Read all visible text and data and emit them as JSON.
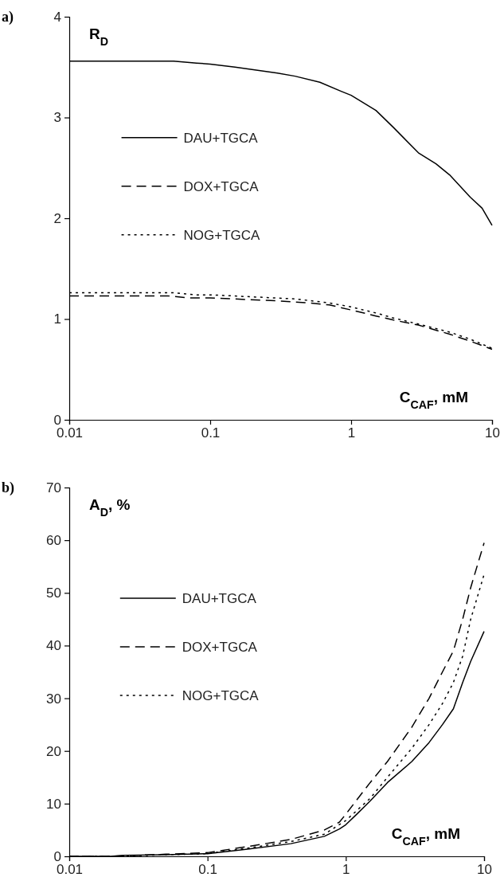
{
  "chart_data": [
    {
      "type": "line",
      "title": "a)",
      "xlabel": "C$_{CAF}$, mM",
      "ylabel": "R$_{D}$",
      "log": "x",
      "xlim": [
        0.01,
        10
      ],
      "xticks": [
        0.01,
        0.1,
        1,
        10
      ],
      "ylim": [
        0,
        4
      ],
      "yticks": [
        0,
        1,
        2,
        3,
        4
      ],
      "legend": "left",
      "marker": "none",
      "series": [
        {
          "name": "DAU+TGCA",
          "color": "#000000",
          "line_style": "solid",
          "x": [
            0.01,
            0.055,
            0.08,
            0.1,
            0.15,
            0.3,
            0.4,
            0.6,
            0.85,
            1,
            1.5,
            2,
            3,
            4,
            5,
            7,
            8.5,
            10
          ],
          "values": [
            3.56,
            3.56,
            3.54,
            3.53,
            3.5,
            3.44,
            3.41,
            3.35,
            3.26,
            3.22,
            3.07,
            2.9,
            2.65,
            2.54,
            2.43,
            2.21,
            2.1,
            1.93
          ]
        },
        {
          "name": "DOX+TGCA",
          "color": "#000000",
          "line_style": "dashed",
          "x": [
            0.01,
            0.05,
            0.07,
            0.1,
            0.3,
            0.5,
            0.7,
            1,
            1.5,
            2,
            3,
            5,
            7,
            10
          ],
          "values": [
            1.23,
            1.23,
            1.21,
            1.21,
            1.18,
            1.16,
            1.14,
            1.09,
            1.03,
            0.99,
            0.94,
            0.85,
            0.78,
            0.7
          ]
        },
        {
          "name": "NOG+TGCA",
          "color": "#000000",
          "line_style": "dotted",
          "x": [
            0.01,
            0.055,
            0.08,
            0.1,
            0.2,
            0.4,
            0.7,
            1,
            1.5,
            2,
            3,
            5,
            7,
            10
          ],
          "values": [
            1.26,
            1.26,
            1.24,
            1.24,
            1.22,
            1.2,
            1.16,
            1.12,
            1.06,
            1.01,
            0.95,
            0.87,
            0.8,
            0.71
          ]
        }
      ]
    },
    {
      "type": "line",
      "title": "b)",
      "xlabel": "C$_{CAF}$, mM",
      "ylabel": "A$_{D}$, %",
      "log": "x",
      "xlim": [
        0.01,
        10
      ],
      "xticks": [
        0.01,
        0.1,
        1,
        10
      ],
      "ylim": [
        0,
        70
      ],
      "yticks": [
        0,
        10,
        20,
        30,
        40,
        50,
        60,
        70
      ],
      "legend": "left",
      "marker": "none",
      "series": [
        {
          "name": "DAU+TGCA",
          "color": "#000000",
          "line_style": "solid",
          "x": [
            0.01,
            0.02,
            0.025,
            0.05,
            0.1,
            0.2,
            0.4,
            0.7,
            0.9,
            1,
            1.2,
            1.5,
            2,
            3,
            4,
            5,
            6,
            7,
            8,
            10
          ],
          "values": [
            0,
            0,
            0.2,
            0.3,
            0.5,
            1.4,
            2.4,
            3.8,
            5.2,
            6,
            8,
            10.5,
            14,
            18,
            21.6,
            25,
            28,
            33,
            37,
            42.7
          ]
        },
        {
          "name": "DOX+TGCA",
          "color": "#000000",
          "line_style": "dashed",
          "x": [
            0.01,
            0.02,
            0.05,
            0.1,
            0.2,
            0.4,
            0.7,
            0.9,
            1,
            1.5,
            2,
            3,
            4,
            5,
            6,
            7,
            8,
            10
          ],
          "values": [
            0,
            0,
            0.4,
            0.7,
            1.9,
            3.2,
            5,
            6.5,
            8,
            14,
            18,
            24.5,
            30,
            35,
            39,
            45,
            51,
            59.5
          ]
        },
        {
          "name": "NOG+TGCA",
          "color": "#000000",
          "line_style": "dotted",
          "x": [
            0.01,
            0.02,
            0.05,
            0.1,
            0.2,
            0.4,
            0.7,
            1,
            1.5,
            2,
            3,
            4,
            5,
            6,
            7,
            8,
            10
          ],
          "values": [
            0,
            0,
            0.3,
            0.5,
            1.6,
            2.8,
            4.2,
            6.8,
            11,
            15,
            20.5,
            25,
            29,
            33,
            38,
            45,
            53.5
          ]
        }
      ]
    }
  ]
}
